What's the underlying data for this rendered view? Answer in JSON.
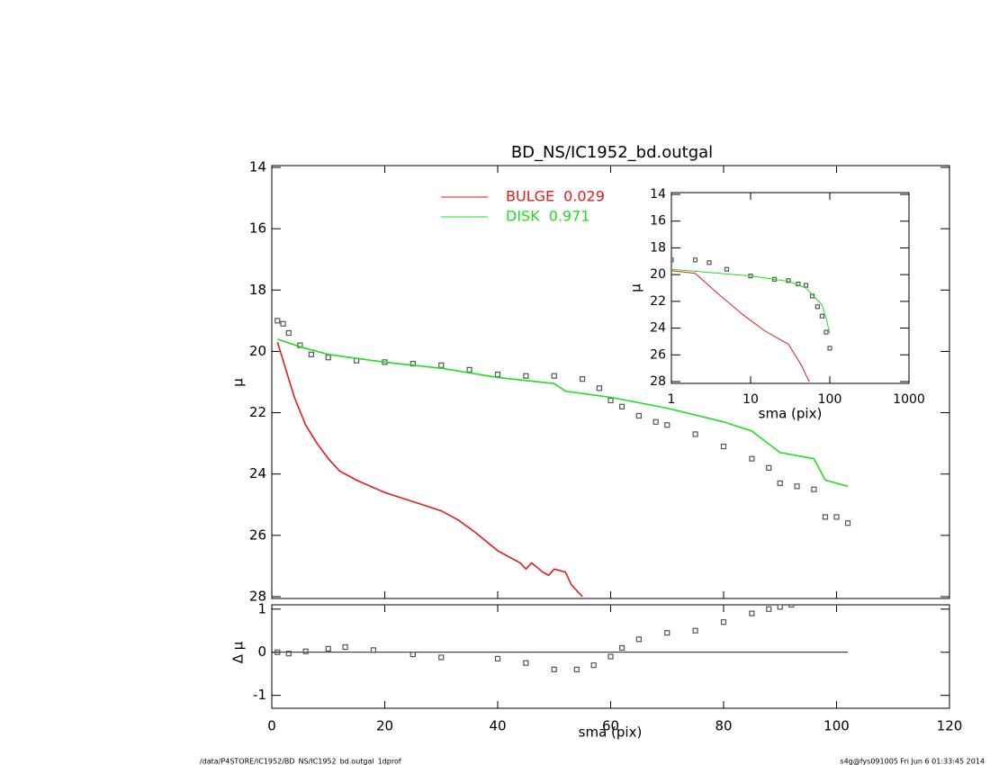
{
  "chart_data": [
    {
      "type": "line",
      "title": "BD_NS/IC1952_bd.outgal",
      "ylabel": "μ",
      "yinvert": true,
      "xlim": [
        0,
        120
      ],
      "xticks": [
        0,
        20,
        40,
        60,
        80,
        100,
        120
      ],
      "ylim": [
        14,
        28
      ],
      "yticks": [
        14,
        16,
        18,
        20,
        22,
        24,
        26,
        28
      ],
      "series": [
        {
          "style": "squares",
          "color": "#555555",
          "x": [
            1,
            2,
            3,
            5,
            7,
            10,
            15,
            20,
            25,
            30,
            35,
            40,
            45,
            50,
            55,
            58,
            60,
            62,
            65,
            68,
            70,
            75,
            80,
            85,
            88,
            90,
            93,
            96,
            98,
            100,
            102
          ],
          "values": [
            19.0,
            19.1,
            19.4,
            19.8,
            20.1,
            20.2,
            20.3,
            20.35,
            20.4,
            20.45,
            20.6,
            20.75,
            20.8,
            20.8,
            20.9,
            21.2,
            21.6,
            21.8,
            22.1,
            22.3,
            22.4,
            22.7,
            23.1,
            23.5,
            23.8,
            24.3,
            24.4,
            24.5,
            25.4,
            25.4,
            25.6
          ]
        },
        {
          "name": "BULGE",
          "fraction": 0.029,
          "style": "line",
          "color": "#e41a1c",
          "x": [
            1,
            2,
            4,
            6,
            8,
            10,
            12,
            15,
            20,
            25,
            30,
            33,
            36,
            40,
            44,
            45,
            46,
            48,
            49,
            50,
            52,
            53,
            55
          ],
          "values": [
            19.7,
            20.3,
            21.5,
            22.4,
            23.0,
            23.5,
            23.9,
            24.2,
            24.6,
            24.9,
            25.2,
            25.5,
            25.9,
            26.5,
            26.9,
            27.1,
            26.9,
            27.2,
            27.3,
            27.1,
            27.2,
            27.6,
            28.0
          ]
        },
        {
          "name": "DISK",
          "fraction": 0.971,
          "style": "line",
          "color": "#22dd22",
          "x": [
            1,
            5,
            10,
            20,
            30,
            40,
            50,
            52,
            60,
            70,
            80,
            85,
            90,
            96,
            98,
            102
          ],
          "values": [
            19.6,
            19.85,
            20.1,
            20.35,
            20.55,
            20.85,
            21.05,
            21.3,
            21.5,
            21.85,
            22.3,
            22.6,
            23.3,
            23.5,
            24.2,
            24.4
          ]
        }
      ]
    },
    {
      "type": "scatter",
      "ylabel": "Δ μ",
      "xlabel": "sma (pix)",
      "yinvert": false,
      "zero_line": true,
      "xlim": [
        0,
        120
      ],
      "xticks": [
        0,
        20,
        40,
        60,
        80,
        100,
        120
      ],
      "ylim": [
        -1.3,
        1.1
      ],
      "yticks": [
        -1,
        0,
        1
      ],
      "series": [
        {
          "style": "squares",
          "color": "#555555",
          "x": [
            1,
            3,
            6,
            10,
            13,
            18,
            25,
            30,
            40,
            45,
            50,
            54,
            57,
            60,
            62,
            65,
            70,
            75,
            80,
            85,
            88,
            90,
            92
          ],
          "values": [
            0,
            -0.03,
            0.02,
            0.08,
            0.12,
            0.05,
            -0.05,
            -0.12,
            -0.15,
            -0.25,
            -0.4,
            -0.4,
            -0.3,
            -0.1,
            0.1,
            0.3,
            0.45,
            0.5,
            0.7,
            0.9,
            1.0,
            1.05,
            1.1
          ]
        }
      ]
    },
    {
      "type": "line",
      "xlabel": "sma (pix)",
      "ylabel": "μ",
      "yinvert": true,
      "xscale": "log",
      "xlim": [
        1,
        1000
      ],
      "xticks": [
        1,
        10,
        100,
        1000
      ],
      "ylim": [
        14,
        28
      ],
      "yticks": [
        14,
        16,
        18,
        20,
        22,
        24,
        26,
        28
      ],
      "series": [
        {
          "style": "squares",
          "color": "#555555",
          "x": [
            1,
            2,
            3,
            5,
            10,
            20,
            30,
            40,
            50,
            60,
            70,
            80,
            90,
            100
          ],
          "values": [
            18.9,
            18.9,
            19.1,
            19.6,
            20.1,
            20.35,
            20.45,
            20.7,
            20.8,
            21.6,
            22.4,
            23.1,
            24.3,
            25.5
          ]
        },
        {
          "style": "line",
          "color": "#e41a1c",
          "x": [
            1,
            2,
            4,
            8,
            15,
            30,
            45,
            50,
            55
          ],
          "values": [
            19.7,
            19.9,
            21.5,
            23.0,
            24.2,
            25.2,
            26.9,
            27.5,
            28.0
          ]
        },
        {
          "style": "line",
          "color": "#22dd22",
          "x": [
            1,
            10,
            30,
            50,
            60,
            80,
            90,
            100
          ],
          "values": [
            19.6,
            20.1,
            20.5,
            21.0,
            21.5,
            22.3,
            23.3,
            24.4
          ]
        }
      ]
    }
  ],
  "footer": {
    "left": "/data/P4STORE/IC1952/BD_NS/IC1952_bd.outgal_1dprof",
    "right": "s4g@fys091005  Fri Jun  6 01:33:45 2014"
  }
}
